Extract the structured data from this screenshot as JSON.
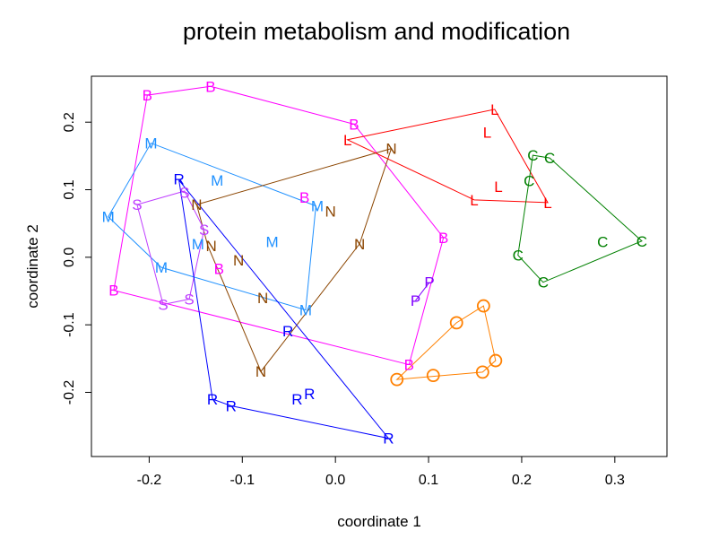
{
  "chart_data": {
    "type": "scatter",
    "title": "protein metabolism and modification",
    "xlabel": "coordinate 1",
    "ylabel": "coordinate 2",
    "xlim": [
      -0.262,
      0.356
    ],
    "ylim": [
      -0.295,
      0.268
    ],
    "xticks": [
      "-0.2",
      "-0.1",
      "0.0",
      "0.1",
      "0.2",
      "0.3"
    ],
    "xtick_values": [
      -0.2,
      -0.1,
      0.0,
      0.1,
      0.2,
      0.3
    ],
    "yticks": [
      "-0.2",
      "-0.1",
      "0.0",
      "0.1",
      "0.2"
    ],
    "ytick_values": [
      -0.2,
      -0.1,
      0.0,
      0.1,
      0.2
    ],
    "grid": false,
    "hulls": true,
    "series": [
      {
        "name": "B",
        "color": "#FF00FF",
        "points": [
          [
            -0.202,
            0.24
          ],
          [
            -0.134,
            0.253
          ],
          [
            0.02,
            0.197
          ],
          [
            0.116,
            0.029
          ],
          [
            0.079,
            -0.159
          ],
          [
            -0.238,
            -0.049
          ],
          [
            -0.031,
            0.089
          ],
          [
            -0.125,
            -0.017
          ]
        ]
      },
      {
        "name": "M",
        "color": "#1E90FF",
        "points": [
          [
            -0.198,
            0.169
          ],
          [
            -0.127,
            0.114
          ],
          [
            -0.244,
            0.06
          ],
          [
            -0.021,
            0.076
          ],
          [
            -0.068,
            0.023
          ],
          [
            -0.144,
            0.02
          ],
          [
            -0.187,
            -0.015
          ],
          [
            -0.032,
            -0.078
          ]
        ]
      },
      {
        "name": "N",
        "color": "#8B4500",
        "points": [
          [
            0.06,
            0.161
          ],
          [
            -0.149,
            0.078
          ],
          [
            -0.006,
            0.068
          ],
          [
            0.026,
            0.02
          ],
          [
            -0.137,
            0.017
          ],
          [
            -0.104,
            -0.004
          ],
          [
            -0.078,
            -0.06
          ],
          [
            -0.08,
            -0.169
          ]
        ]
      },
      {
        "name": "S",
        "color": "#BF3EFF",
        "points": [
          [
            -0.213,
            0.078
          ],
          [
            -0.162,
            0.098
          ],
          [
            -0.141,
            0.041
          ],
          [
            -0.185,
            -0.07
          ],
          [
            -0.157,
            -0.062
          ]
        ]
      },
      {
        "name": "R",
        "color": "#0000FF",
        "points": [
          [
            -0.168,
            0.114
          ],
          [
            -0.051,
            -0.109
          ],
          [
            -0.132,
            -0.21
          ],
          [
            -0.112,
            -0.22
          ],
          [
            -0.039,
            -0.21
          ],
          [
            -0.03,
            -0.202
          ],
          [
            0.057,
            -0.268
          ]
        ]
      },
      {
        "name": "L",
        "color": "#FF0000",
        "points": [
          [
            0.013,
            0.174
          ],
          [
            0.171,
            0.219
          ],
          [
            0.163,
            0.185
          ],
          [
            0.175,
            0.105
          ],
          [
            0.149,
            0.085
          ],
          [
            0.228,
            0.081
          ]
        ]
      },
      {
        "name": "C",
        "color": "#008000",
        "points": [
          [
            0.212,
            0.151
          ],
          [
            0.23,
            0.147
          ],
          [
            0.208,
            0.113
          ],
          [
            0.287,
            0.023
          ],
          [
            0.329,
            0.024
          ],
          [
            0.196,
            0.003
          ],
          [
            0.223,
            -0.037
          ]
        ]
      },
      {
        "name": "P",
        "color": "#8000FF",
        "points": [
          [
            0.101,
            -0.037
          ],
          [
            0.086,
            -0.064
          ]
        ]
      },
      {
        "name": "O",
        "color": "#FF8000",
        "marker": "circle",
        "points": [
          [
            0.066,
            -0.181
          ],
          [
            0.105,
            -0.175
          ],
          [
            0.13,
            -0.097
          ],
          [
            0.159,
            -0.072
          ],
          [
            0.172,
            -0.153
          ],
          [
            0.158,
            -0.17
          ]
        ]
      }
    ]
  }
}
